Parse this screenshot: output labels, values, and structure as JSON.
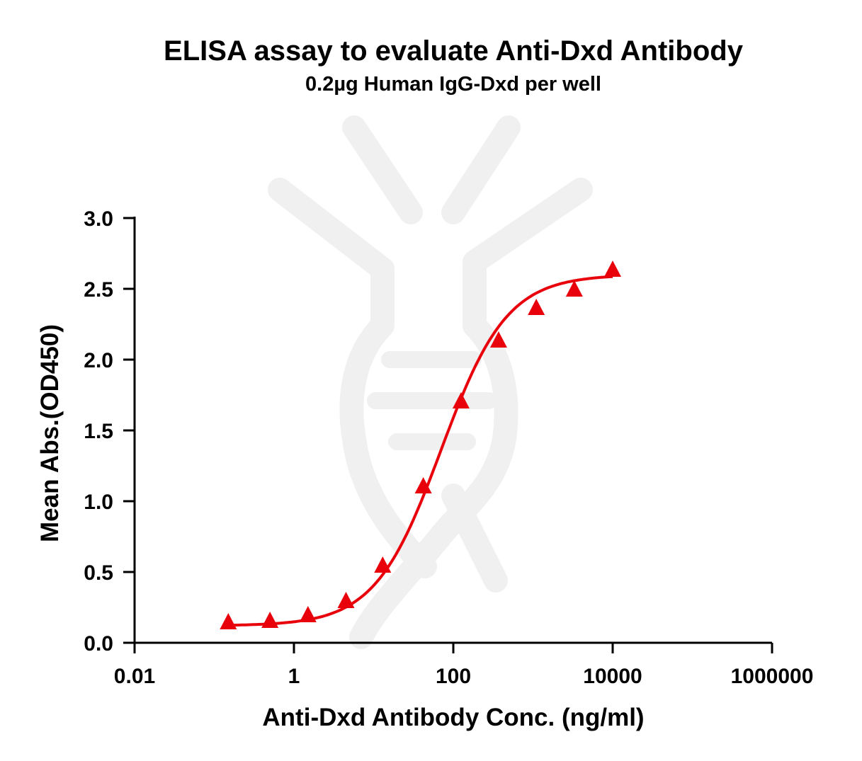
{
  "chart_data": {
    "type": "scatter",
    "title": "ELISA assay to evaluate Anti-Dxd Antibody",
    "subtitle": "0.2µg Human IgG-Dxd per well",
    "xlabel": "Anti-Dxd Antibody Conc. (ng/ml)",
    "ylabel": "Mean Abs.(OD450)",
    "x_scale": "log",
    "xlim": [
      0.01,
      1000000
    ],
    "ylim": [
      0,
      3.0
    ],
    "x_ticks": [
      0.01,
      1,
      100,
      10000,
      1000000
    ],
    "x_tick_labels": [
      "0.01",
      "1",
      "100",
      "10000",
      "1000000"
    ],
    "y_ticks": [
      0,
      0.5,
      1.0,
      1.5,
      2.0,
      2.5,
      3.0
    ],
    "y_tick_labels": [
      "0.0",
      "0.5",
      "1.0",
      "1.5",
      "2.0",
      "2.5",
      "3.0"
    ],
    "grid": false,
    "marker": "triangle",
    "color": "#e8000b",
    "series": [
      {
        "x": [
          0.15,
          0.5,
          1.5,
          4.5,
          13,
          42,
          125,
          370,
          1100,
          3300,
          10000
        ],
        "y": [
          0.14,
          0.15,
          0.19,
          0.29,
          0.54,
          1.1,
          1.7,
          2.13,
          2.36,
          2.49,
          2.63
        ],
        "fit": "4PL",
        "fit_params": {
          "bottom": 0.12,
          "top": 2.6,
          "ec50": 70,
          "hill": 1.05
        }
      }
    ]
  }
}
